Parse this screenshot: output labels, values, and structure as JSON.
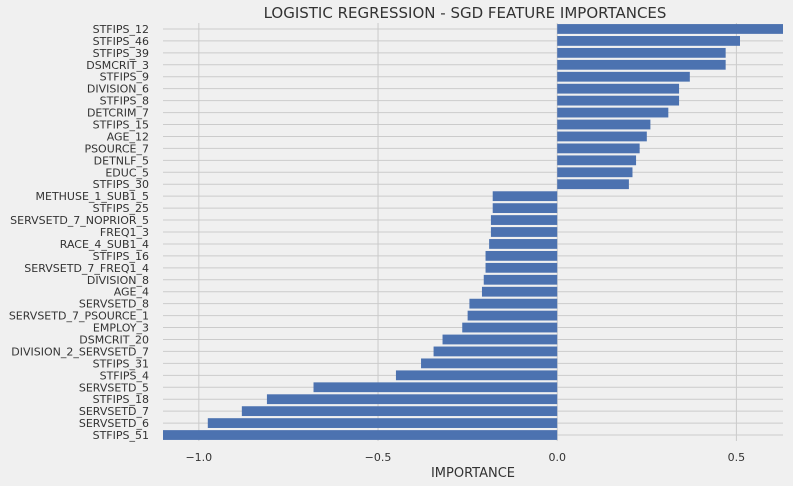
{
  "chart_data": {
    "type": "bar",
    "orientation": "horizontal",
    "title": "LOGISTIC REGRESSION - SGD FEATURE IMPORTANCES",
    "xlabel": "IMPORTANCE",
    "ylabel": "",
    "xlim": [
      -1.1,
      0.63
    ],
    "xticks": [
      -1.0,
      -0.5,
      0.0,
      0.5
    ],
    "xtick_labels": [
      "−1.0",
      "−0.5",
      "0.0",
      "0.5"
    ],
    "grid": true,
    "colors": {
      "bar": "#4c72b0",
      "background": "#f0f0f0",
      "grid": "#cbcbcb"
    },
    "categories": [
      "STFIPS_12",
      "STFIPS_46",
      "STFIPS_39",
      "DSMCRIT_3",
      "STFIPS_9",
      "DIVISION_6",
      "STFIPS_8",
      "DETCRIM_7",
      "STFIPS_15",
      "AGE_12",
      "PSOURCE_7",
      "DETNLF_5",
      "EDUC_5",
      "STFIPS_30",
      "METHUSE_1_SUB1_5",
      "STFIPS_25",
      "SERVSETD_7_NOPRIOR_5",
      "FREQ1_3",
      "RACE_4_SUB1_4",
      "STFIPS_16",
      "SERVSETD_7_FREQ1_4",
      "DIVISION_8",
      "AGE_4",
      "SERVSETD_8",
      "SERVSETD_7_PSOURCE_1",
      "EMPLOY_3",
      "DSMCRIT_20",
      "DIVISION_2_SERVSETD_7",
      "STFIPS_31",
      "STFIPS_4",
      "SERVSETD_5",
      "STFIPS_18",
      "SERVSETD_7",
      "SERVSETD_6",
      "STFIPS_51"
    ],
    "values": [
      0.63,
      0.51,
      0.47,
      0.47,
      0.37,
      0.34,
      0.34,
      0.31,
      0.26,
      0.25,
      0.23,
      0.22,
      0.21,
      0.2,
      -0.18,
      -0.18,
      -0.185,
      -0.185,
      -0.19,
      -0.2,
      -0.2,
      -0.205,
      -0.21,
      -0.245,
      -0.25,
      -0.265,
      -0.32,
      -0.345,
      -0.38,
      -0.45,
      -0.68,
      -0.81,
      -0.88,
      -0.975,
      -1.1
    ]
  }
}
